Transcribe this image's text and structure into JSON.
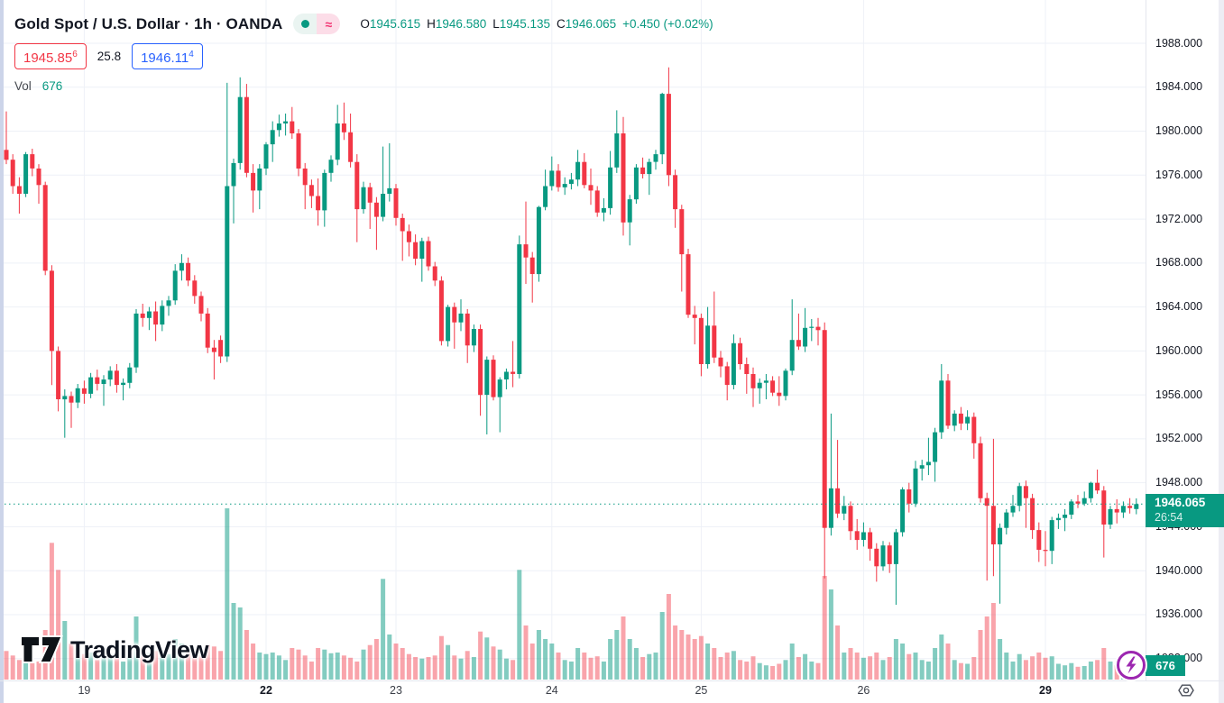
{
  "header": {
    "symbol_title": "Gold Spot / U.S. Dollar · 1h · OANDA",
    "ohlc": {
      "o_label": "O",
      "o": "1945.615",
      "h_label": "H",
      "h": "1946.580",
      "l_label": "L",
      "l": "1945.135",
      "c_label": "C",
      "c": "1946.065",
      "change": "+0.450 (+0.02%)"
    },
    "bid_main": "1945.85",
    "bid_sup": "6",
    "spread": "25.8",
    "ask_main": "1946.11",
    "ask_sup": "4",
    "vol_label": "Vol",
    "vol_value": "676"
  },
  "badges": {
    "price": "1946.065",
    "countdown": "26:54",
    "volume": "676"
  },
  "logo": {
    "text": "TradingView"
  },
  "axis": {
    "price_ticks": [
      "1988.000",
      "1984.000",
      "1980.000",
      "1976.000",
      "1972.000",
      "1968.000",
      "1964.000",
      "1960.000",
      "1956.000",
      "1952.000",
      "1948.000",
      "1944.000",
      "1940.000",
      "1936.000",
      "1932.000"
    ],
    "time_ticks": [
      {
        "label": "19",
        "index": 12,
        "bold": false
      },
      {
        "label": "22",
        "index": 40,
        "bold": true
      },
      {
        "label": "23",
        "index": 60,
        "bold": false
      },
      {
        "label": "24",
        "index": 84,
        "bold": false
      },
      {
        "label": "25",
        "index": 107,
        "bold": false
      },
      {
        "label": "26",
        "index": 132,
        "bold": false
      },
      {
        "label": "29",
        "index": 160,
        "bold": true
      }
    ]
  },
  "colors": {
    "up": "#089981",
    "down": "#f23645",
    "vol_up": "rgba(8,153,129,0.5)",
    "vol_down": "rgba(242,54,69,0.45)",
    "grid": "#eef1f7",
    "price_line": "#089981",
    "badge": "#089981",
    "bid": "#f23645",
    "ask": "#2962ff",
    "accent_pink": "#f23674",
    "purple": "#9c27b0"
  },
  "chart_data": {
    "type": "candlestick",
    "title": "Gold Spot / U.S. Dollar",
    "interval": "1h",
    "exchange": "OANDA",
    "last_price": 1946.065,
    "ylim": [
      1932,
      1988
    ],
    "x_day_labels": [
      "19",
      "22",
      "23",
      "24",
      "25",
      "26",
      "29"
    ],
    "series_format": [
      "open",
      "high",
      "low",
      "close",
      "volume"
    ],
    "candles": [
      [
        1978.3,
        1981.8,
        1977.0,
        1977.4,
        1900
      ],
      [
        1977.4,
        1977.9,
        1974.3,
        1975.0,
        1600
      ],
      [
        1975.0,
        1975.8,
        1972.5,
        1974.3,
        1300
      ],
      [
        1974.3,
        1978.1,
        1974.0,
        1977.9,
        1450
      ],
      [
        1977.9,
        1978.4,
        1975.9,
        1976.6,
        1100
      ],
      [
        1976.6,
        1977.0,
        1973.4,
        1975.1,
        1200
      ],
      [
        1975.1,
        1975.4,
        1966.9,
        1967.3,
        3300
      ],
      [
        1967.3,
        1967.8,
        1956.9,
        1960.0,
        9100
      ],
      [
        1960.0,
        1960.4,
        1954.5,
        1955.6,
        7300
      ],
      [
        1955.6,
        1956.5,
        1952.1,
        1955.9,
        3900
      ],
      [
        1955.9,
        1956.3,
        1953.0,
        1955.3,
        2400
      ],
      [
        1955.3,
        1957.0,
        1954.8,
        1956.6,
        2100
      ],
      [
        1956.6,
        1957.3,
        1955.2,
        1956.1,
        1700
      ],
      [
        1956.1,
        1958.0,
        1955.7,
        1957.6,
        1800
      ],
      [
        1957.6,
        1958.3,
        1956.4,
        1957.0,
        1300
      ],
      [
        1957.0,
        1957.8,
        1955.0,
        1957.4,
        1500
      ],
      [
        1957.4,
        1958.6,
        1956.8,
        1958.2,
        1700
      ],
      [
        1958.2,
        1958.8,
        1956.2,
        1956.9,
        1450
      ],
      [
        1956.9,
        1957.5,
        1955.5,
        1957.1,
        1200
      ],
      [
        1957.1,
        1958.9,
        1956.6,
        1958.5,
        1550
      ],
      [
        1958.5,
        1963.8,
        1958.0,
        1963.4,
        4200
      ],
      [
        1963.4,
        1964.3,
        1962.2,
        1963.0,
        2100
      ],
      [
        1963.0,
        1964.0,
        1961.9,
        1963.6,
        1800
      ],
      [
        1963.6,
        1964.5,
        1960.9,
        1962.4,
        1900
      ],
      [
        1962.4,
        1964.6,
        1961.8,
        1964.1,
        1800
      ],
      [
        1964.1,
        1965.0,
        1963.2,
        1964.6,
        1700
      ],
      [
        1964.6,
        1967.9,
        1964.2,
        1967.3,
        2700
      ],
      [
        1967.3,
        1968.8,
        1966.4,
        1968.0,
        2400
      ],
      [
        1968.0,
        1968.5,
        1965.9,
        1966.4,
        1800
      ],
      [
        1966.4,
        1966.9,
        1964.3,
        1965.0,
        1700
      ],
      [
        1965.0,
        1965.4,
        1962.7,
        1963.4,
        1600
      ],
      [
        1963.4,
        1963.9,
        1959.8,
        1960.3,
        2300
      ],
      [
        1960.3,
        1961.0,
        1957.4,
        1959.9,
        2200
      ],
      [
        1961.0,
        1961.4,
        1958.9,
        1959.5,
        1900
      ],
      [
        1959.5,
        1984.4,
        1959.0,
        1975.0,
        11400
      ],
      [
        1975.0,
        1977.5,
        1971.6,
        1977.1,
        5100
      ],
      [
        1977.1,
        1984.9,
        1976.5,
        1983.1,
        4800
      ],
      [
        1983.1,
        1984.3,
        1975.8,
        1976.2,
        3300
      ],
      [
        1976.2,
        1977.0,
        1972.6,
        1974.6,
        2400
      ],
      [
        1974.6,
        1977.0,
        1972.9,
        1976.6,
        1800
      ],
      [
        1976.6,
        1979.0,
        1976.0,
        1978.8,
        1700
      ],
      [
        1978.8,
        1980.9,
        1977.2,
        1980.1,
        1800
      ],
      [
        1980.1,
        1981.5,
        1979.5,
        1980.7,
        1600
      ],
      [
        1980.7,
        1981.6,
        1979.6,
        1980.9,
        1300
      ],
      [
        1980.9,
        1982.2,
        1979.3,
        1979.8,
        2100
      ],
      [
        1979.8,
        1980.2,
        1975.9,
        1976.6,
        2000
      ],
      [
        1976.6,
        1977.1,
        1972.9,
        1975.1,
        1600
      ],
      [
        1975.1,
        1975.6,
        1973.0,
        1974.1,
        1200
      ],
      [
        1974.1,
        1975.7,
        1971.4,
        1972.8,
        2100
      ],
      [
        1972.8,
        1976.5,
        1971.3,
        1976.2,
        2000
      ],
      [
        1976.2,
        1977.8,
        1975.4,
        1977.4,
        1750
      ],
      [
        1977.4,
        1982.4,
        1976.9,
        1980.7,
        1800
      ],
      [
        1980.7,
        1982.6,
        1979.2,
        1979.9,
        1600
      ],
      [
        1979.9,
        1981.6,
        1976.7,
        1977.2,
        1450
      ],
      [
        1977.2,
        1977.9,
        1969.9,
        1972.9,
        1200
      ],
      [
        1972.9,
        1975.4,
        1972.5,
        1974.9,
        2000
      ],
      [
        1974.9,
        1975.3,
        1971.1,
        1973.5,
        2300
      ],
      [
        1973.5,
        1974.0,
        1969.2,
        1972.2,
        2700
      ],
      [
        1972.2,
        1978.6,
        1971.8,
        1974.3,
        6700
      ],
      [
        1974.3,
        1978.9,
        1973.6,
        1974.8,
        3000
      ],
      [
        1974.8,
        1975.2,
        1971.4,
        1972.1,
        2400
      ],
      [
        1972.1,
        1972.5,
        1968.2,
        1970.9,
        2100
      ],
      [
        1970.9,
        1971.5,
        1968.6,
        1969.9,
        1700
      ],
      [
        1969.9,
        1970.6,
        1967.8,
        1968.4,
        1500
      ],
      [
        1968.4,
        1970.3,
        1966.3,
        1970.0,
        1400
      ],
      [
        1970.0,
        1970.4,
        1967.3,
        1967.7,
        1500
      ],
      [
        1967.7,
        1968.1,
        1965.9,
        1966.4,
        1600
      ],
      [
        1966.4,
        1966.8,
        1960.5,
        1960.9,
        2900
      ],
      [
        1960.9,
        1964.2,
        1960.4,
        1964.0,
        2300
      ],
      [
        1964.0,
        1964.4,
        1960.2,
        1962.6,
        1600
      ],
      [
        1962.6,
        1964.7,
        1961.8,
        1963.4,
        1400
      ],
      [
        1963.4,
        1963.8,
        1958.9,
        1960.5,
        1900
      ],
      [
        1960.5,
        1962.4,
        1959.9,
        1962.0,
        1500
      ],
      [
        1962.0,
        1962.4,
        1954.1,
        1956.0,
        3200
      ],
      [
        1956.0,
        1959.5,
        1952.4,
        1959.2,
        2800
      ],
      [
        1959.2,
        1959.6,
        1955.5,
        1955.8,
        2200
      ],
      [
        1955.8,
        1957.6,
        1952.6,
        1957.4,
        2000
      ],
      [
        1957.4,
        1958.4,
        1956.5,
        1958.1,
        1400
      ],
      [
        1958.1,
        1960.9,
        1956.7,
        1957.9,
        1300
      ],
      [
        1957.9,
        1970.5,
        1957.5,
        1969.7,
        7300
      ],
      [
        1969.7,
        1973.6,
        1966.1,
        1968.5,
        3600
      ],
      [
        1968.5,
        1969.0,
        1964.4,
        1967.0,
        2400
      ],
      [
        1967.0,
        1973.2,
        1966.3,
        1973.1,
        3300
      ],
      [
        1973.1,
        1976.5,
        1972.8,
        1975.0,
        2700
      ],
      [
        1975.0,
        1977.7,
        1974.6,
        1976.4,
        2400
      ],
      [
        1976.4,
        1977.0,
        1974.5,
        1974.9,
        1800
      ],
      [
        1974.9,
        1975.8,
        1974.2,
        1975.2,
        1300
      ],
      [
        1975.2,
        1976.2,
        1974.7,
        1975.6,
        1200
      ],
      [
        1975.6,
        1978.3,
        1975.0,
        1977.2,
        2100
      ],
      [
        1977.2,
        1978.0,
        1974.8,
        1975.1,
        1800
      ],
      [
        1975.1,
        1976.6,
        1973.3,
        1974.6,
        1450
      ],
      [
        1974.6,
        1975.0,
        1972.2,
        1972.6,
        1550
      ],
      [
        1972.6,
        1973.9,
        1971.8,
        1973.0,
        1200
      ],
      [
        1973.0,
        1978.2,
        1972.4,
        1976.7,
        2700
      ],
      [
        1976.7,
        1981.9,
        1976.2,
        1979.8,
        3300
      ],
      [
        1979.8,
        1981.3,
        1970.5,
        1971.7,
        4200
      ],
      [
        1971.7,
        1974.2,
        1969.6,
        1973.8,
        2700
      ],
      [
        1973.8,
        1977.0,
        1973.4,
        1976.7,
        2100
      ],
      [
        1976.7,
        1977.6,
        1975.7,
        1976.1,
        1500
      ],
      [
        1976.1,
        1977.5,
        1974.2,
        1977.2,
        1700
      ],
      [
        1977.2,
        1978.3,
        1976.5,
        1977.9,
        1800
      ],
      [
        1977.9,
        1983.5,
        1977.0,
        1983.4,
        4500
      ],
      [
        1983.4,
        1985.8,
        1975.0,
        1976.0,
        5700
      ],
      [
        1976.0,
        1976.5,
        1971.2,
        1972.9,
        3600
      ],
      [
        1972.9,
        1973.3,
        1965.4,
        1968.8,
        3300
      ],
      [
        1968.8,
        1969.3,
        1963.0,
        1963.3,
        3000
      ],
      [
        1963.3,
        1964.1,
        1960.6,
        1963.0,
        2700
      ],
      [
        1963.0,
        1963.4,
        1957.7,
        1958.8,
        2900
      ],
      [
        1958.8,
        1964.0,
        1958.4,
        1962.3,
        2400
      ],
      [
        1962.3,
        1965.4,
        1958.9,
        1959.4,
        2100
      ],
      [
        1959.4,
        1960.0,
        1957.6,
        1958.6,
        1500
      ],
      [
        1958.6,
        1959.0,
        1955.5,
        1956.9,
        1800
      ],
      [
        1956.9,
        1961.5,
        1956.5,
        1960.7,
        1900
      ],
      [
        1960.7,
        1961.2,
        1958.3,
        1958.8,
        1300
      ],
      [
        1958.8,
        1959.4,
        1956.1,
        1957.9,
        1200
      ],
      [
        1957.9,
        1958.5,
        1954.9,
        1956.6,
        1550
      ],
      [
        1956.6,
        1957.5,
        1955.2,
        1957.1,
        1100
      ],
      [
        1957.1,
        1957.9,
        1955.6,
        1957.3,
        950
      ],
      [
        1957.3,
        1957.7,
        1955.9,
        1956.2,
        900
      ],
      [
        1956.2,
        1957.7,
        1955.0,
        1955.9,
        1050
      ],
      [
        1955.9,
        1958.4,
        1955.5,
        1958.2,
        1300
      ],
      [
        1958.2,
        1964.7,
        1957.8,
        1961.0,
        2400
      ],
      [
        1961.0,
        1963.4,
        1960.1,
        1960.4,
        1500
      ],
      [
        1960.4,
        1963.9,
        1959.9,
        1962.1,
        1700
      ],
      [
        1962.1,
        1962.9,
        1960.9,
        1962.2,
        1200
      ],
      [
        1962.2,
        1963.0,
        1960.5,
        1961.9,
        1100
      ],
      [
        1961.9,
        1962.6,
        1939.3,
        1943.9,
        6900
      ],
      [
        1943.9,
        1954.3,
        1943.2,
        1947.5,
        6000
      ],
      [
        1947.5,
        1951.9,
        1944.8,
        1945.2,
        3600
      ],
      [
        1945.2,
        1946.8,
        1944.6,
        1945.9,
        1800
      ],
      [
        1945.9,
        1946.3,
        1942.8,
        1943.6,
        2100
      ],
      [
        1943.6,
        1944.7,
        1941.9,
        1942.8,
        1800
      ],
      [
        1942.8,
        1944.4,
        1942.2,
        1943.5,
        1450
      ],
      [
        1943.5,
        1943.9,
        1940.9,
        1942.0,
        1550
      ],
      [
        1942.0,
        1942.5,
        1939.0,
        1940.4,
        1800
      ],
      [
        1940.4,
        1942.7,
        1940.0,
        1942.3,
        1300
      ],
      [
        1942.3,
        1942.6,
        1939.8,
        1940.6,
        1500
      ],
      [
        1940.6,
        1943.8,
        1936.9,
        1943.5,
        2700
      ],
      [
        1943.5,
        1947.6,
        1943.1,
        1947.4,
        2400
      ],
      [
        1947.4,
        1948.0,
        1945.3,
        1946.1,
        1700
      ],
      [
        1946.1,
        1950.0,
        1945.8,
        1949.3,
        1800
      ],
      [
        1949.3,
        1950.1,
        1948.2,
        1949.6,
        1300
      ],
      [
        1949.6,
        1952.1,
        1948.7,
        1949.9,
        1200
      ],
      [
        1949.9,
        1953.0,
        1948.1,
        1952.6,
        2100
      ],
      [
        1952.6,
        1958.8,
        1952.0,
        1957.3,
        3000
      ],
      [
        1957.3,
        1957.9,
        1952.9,
        1953.2,
        2400
      ],
      [
        1953.2,
        1954.6,
        1952.7,
        1954.3,
        1300
      ],
      [
        1954.3,
        1954.9,
        1952.8,
        1953.4,
        1100
      ],
      [
        1953.4,
        1954.6,
        1952.8,
        1954.0,
        1050
      ],
      [
        1954.0,
        1954.4,
        1950.2,
        1951.6,
        1500
      ],
      [
        1951.6,
        1952.2,
        1946.2,
        1946.6,
        3300
      ],
      [
        1946.6,
        1947.1,
        1939.1,
        1945.9,
        4200
      ],
      [
        1945.9,
        1952.0,
        1939.5,
        1942.4,
        5100
      ],
      [
        1942.4,
        1944.3,
        1937.0,
        1943.9,
        2700
      ],
      [
        1943.9,
        1945.6,
        1943.3,
        1945.3,
        1800
      ],
      [
        1945.3,
        1946.9,
        1944.9,
        1945.9,
        1200
      ],
      [
        1945.9,
        1948.0,
        1945.4,
        1947.7,
        1700
      ],
      [
        1947.7,
        1948.2,
        1943.9,
        1946.6,
        1300
      ],
      [
        1946.6,
        1947.0,
        1942.9,
        1943.7,
        1550
      ],
      [
        1943.7,
        1944.4,
        1940.8,
        1941.9,
        1800
      ],
      [
        1941.9,
        1943.6,
        1940.4,
        1941.8,
        1450
      ],
      [
        1941.8,
        1944.9,
        1940.6,
        1944.6,
        1550
      ],
      [
        1944.6,
        1945.2,
        1943.8,
        1944.8,
        1050
      ],
      [
        1944.8,
        1945.6,
        1943.6,
        1945.1,
        950
      ],
      [
        1945.1,
        1946.5,
        1944.7,
        1946.3,
        1100
      ],
      [
        1946.3,
        1946.9,
        1945.7,
        1946.1,
        850
      ],
      [
        1946.1,
        1947.2,
        1945.9,
        1946.6,
        900
      ],
      [
        1946.6,
        1948.1,
        1946.2,
        1948.0,
        1200
      ],
      [
        1948.0,
        1949.2,
        1947.0,
        1947.3,
        1300
      ],
      [
        1947.3,
        1947.7,
        1941.2,
        1944.2,
        2100
      ],
      [
        1944.2,
        1945.9,
        1943.8,
        1945.6,
        1200
      ],
      [
        1945.6,
        1946.5,
        1944.3,
        1945.3,
        950
      ],
      [
        1945.3,
        1946.3,
        1944.8,
        1945.9,
        850
      ],
      [
        1945.9,
        1946.6,
        1945.2,
        1945.7,
        750
      ],
      [
        1945.615,
        1946.58,
        1945.135,
        1946.065,
        676
      ]
    ]
  }
}
